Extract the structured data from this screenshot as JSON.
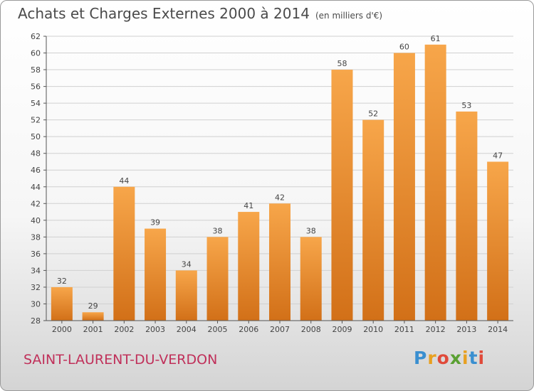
{
  "header": {
    "title": "Achats et Charges Externes 2000 à 2014",
    "subtitle": "(en milliers d'€)"
  },
  "footer": {
    "town": "SAINT-LAURENT-DU-VERDON",
    "logo_letters": [
      "P",
      "r",
      "o",
      "x",
      "i",
      "t",
      "i"
    ],
    "logo_colors": [
      "#3a8fd0",
      "#e8a020",
      "#e04a3a",
      "#5aa032",
      "#e8a020",
      "#3a8fd0",
      "#e04a3a"
    ]
  },
  "colors": {
    "bar_light": "#f7a64a",
    "bar_dark": "#d27018",
    "grid": "#d0d0d0",
    "axis": "#555555",
    "town": "#c0305a"
  },
  "chart_data": {
    "type": "bar",
    "title": "Achats et Charges Externes 2000 à 2014",
    "subtitle": "(en milliers d'€)",
    "categories": [
      "2000",
      "2001",
      "2002",
      "2003",
      "2004",
      "2005",
      "2006",
      "2007",
      "2008",
      "2009",
      "2010",
      "2011",
      "2012",
      "2013",
      "2014"
    ],
    "values": [
      32,
      29,
      44,
      39,
      34,
      38,
      41,
      42,
      38,
      58,
      52,
      60,
      61,
      53,
      47
    ],
    "ylim": [
      28,
      62
    ],
    "yticks": [
      28,
      30,
      32,
      34,
      36,
      38,
      40,
      42,
      44,
      46,
      48,
      50,
      52,
      54,
      56,
      58,
      60,
      62
    ],
    "grid": true,
    "data_labels": true
  }
}
